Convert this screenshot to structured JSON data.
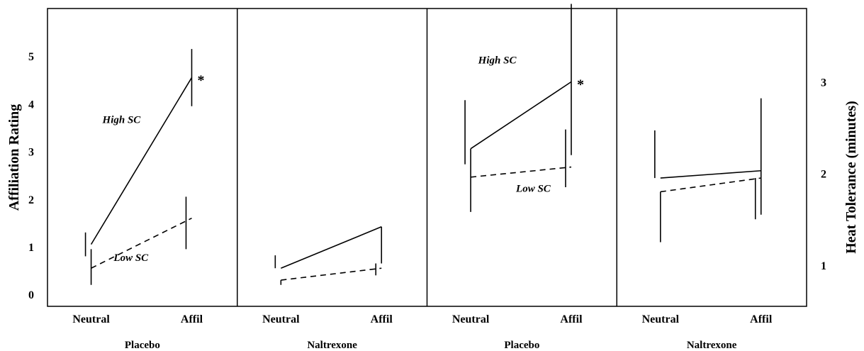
{
  "chart_data": {
    "type": "line",
    "left_axis": {
      "label": "Affiliation Rating",
      "ticks": [
        "0",
        "1",
        "2",
        "3",
        "4",
        "5"
      ],
      "ylim": [
        -0.25,
        6
      ]
    },
    "right_axis": {
      "label": "Heat Tolerance (minutes)",
      "ticks": [
        "1",
        "2",
        "3"
      ],
      "ylim": [
        0.55,
        3.8
      ]
    },
    "categories": [
      "Neutral",
      "Affil"
    ],
    "panels": [
      {
        "group_label": "Placebo",
        "axis": "left",
        "series": [
          {
            "name": "High SC",
            "style": "solid",
            "values": [
              1.05,
              4.55
            ],
            "error_low": [
              0.8,
              3.95
            ],
            "error_high": [
              1.3,
              5.15
            ],
            "significant": [
              false,
              true
            ]
          },
          {
            "name": "Low SC",
            "style": "dashed",
            "values": [
              0.55,
              1.6
            ],
            "error_low": [
              0.2,
              0.95
            ],
            "error_high": [
              0.95,
              2.05
            ],
            "significant": [
              false,
              false
            ]
          }
        ]
      },
      {
        "group_label": "Naltrexone",
        "axis": "left",
        "series": [
          {
            "name": "",
            "style": "solid",
            "values": [
              0.55,
              1.42
            ],
            "error_low": [
              0.55,
              0.65
            ],
            "error_high": [
              0.82,
              1.42
            ],
            "significant": [
              false,
              false
            ]
          },
          {
            "name": "",
            "style": "dashed",
            "values": [
              0.3,
              0.55
            ],
            "error_low": [
              0.2,
              0.4
            ],
            "error_high": [
              0.3,
              0.65
            ],
            "significant": [
              false,
              false
            ]
          }
        ]
      },
      {
        "group_label": "Placebo",
        "axis": "right",
        "series": [
          {
            "name": "High SC",
            "style": "solid",
            "values": [
              2.27,
              3.0
            ],
            "error_low": [
              2.1,
              2.2
            ],
            "error_high": [
              2.8,
              3.85
            ],
            "significant": [
              false,
              true
            ]
          },
          {
            "name": "Low SC",
            "style": "dashed",
            "values": [
              1.96,
              2.07
            ],
            "error_low": [
              1.58,
              1.85
            ],
            "error_high": [
              2.27,
              2.48
            ],
            "significant": [
              false,
              false
            ]
          }
        ]
      },
      {
        "group_label": "Naltrexone",
        "axis": "right",
        "series": [
          {
            "name": "",
            "style": "solid",
            "values": [
              1.95,
              2.03
            ],
            "error_low": [
              1.95,
              1.55
            ],
            "error_high": [
              2.47,
              2.82
            ],
            "significant": [
              false,
              false
            ]
          },
          {
            "name": "",
            "style": "dashed",
            "values": [
              1.8,
              1.95
            ],
            "error_low": [
              1.25,
              1.5
            ],
            "error_high": [
              1.8,
              1.95
            ],
            "significant": [
              false,
              false
            ]
          }
        ]
      }
    ],
    "significance_marker": "*",
    "grid": false,
    "legend": "none"
  }
}
